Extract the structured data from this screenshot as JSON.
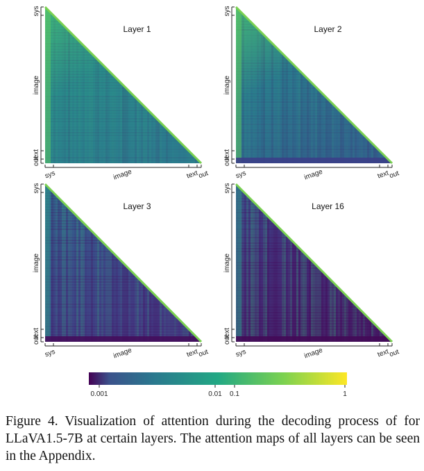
{
  "panels": [
    {
      "title": "Layer 1",
      "y_axis": [
        "sys",
        "image",
        "text",
        "out"
      ],
      "x_axis": [
        "sys",
        "image",
        "text",
        "out"
      ]
    },
    {
      "title": "Layer 2",
      "y_axis": [
        "sys",
        "image",
        "text",
        "out"
      ],
      "x_axis": [
        "sys",
        "image",
        "text",
        "out"
      ]
    },
    {
      "title": "Layer 3",
      "y_axis": [
        "sys",
        "image",
        "text",
        "out"
      ],
      "x_axis": [
        "sys",
        "image",
        "text",
        "out"
      ]
    },
    {
      "title": "Layer 16",
      "y_axis": [
        "sys",
        "image",
        "text",
        "out"
      ],
      "x_axis": [
        "sys",
        "image",
        "text",
        "out"
      ]
    }
  ],
  "colorbar": {
    "ticks": [
      "0.001",
      "0.01",
      "0.1",
      "1"
    ]
  },
  "caption": "Figure 4.  Visualization of attention during the decoding process of for LLaVA1.5-7B at certain layers.  The attention maps of all layers can be seen in the Appendix."
}
